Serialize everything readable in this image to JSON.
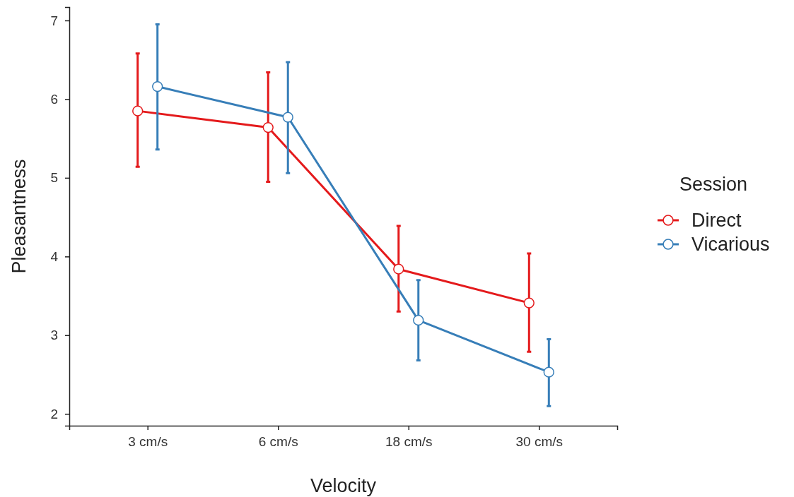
{
  "chart_data": {
    "type": "line",
    "xlabel": "Velocity",
    "ylabel": "Pleasantness",
    "legend_title": "Session",
    "legend": "right",
    "marker": "circle",
    "line_style": "solid",
    "grid": false,
    "categories": [
      "3 cm/s",
      "6 cm/s",
      "18 cm/s",
      "30 cm/s"
    ],
    "ylim": [
      1.85,
      7.17
    ],
    "yticks": [
      2,
      3,
      4,
      5,
      6,
      7
    ],
    "series": [
      {
        "name": "Direct",
        "color": "#e41a1c",
        "values": [
          5.85,
          5.64,
          3.84,
          3.41
        ],
        "errors": [
          [
            5.14,
            6.58
          ],
          [
            4.95,
            6.34
          ],
          [
            3.3,
            4.39
          ],
          [
            2.79,
            4.04
          ]
        ]
      },
      {
        "name": "Vicarious",
        "color": "#377eb8",
        "values": [
          6.16,
          5.77,
          3.19,
          2.53
        ],
        "errors": [
          [
            5.36,
            6.95
          ],
          [
            5.06,
            6.47
          ],
          [
            2.68,
            3.7
          ],
          [
            2.1,
            2.95
          ]
        ]
      }
    ]
  }
}
